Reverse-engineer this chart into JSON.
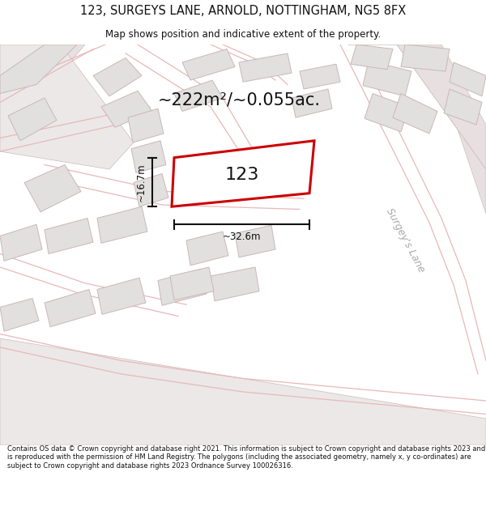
{
  "title_line1": "123, SURGEYS LANE, ARNOLD, NOTTINGHAM, NG5 8FX",
  "title_line2": "Map shows position and indicative extent of the property.",
  "area_text": "~222m²/~0.055ac.",
  "plot_number": "123",
  "dim_width": "~32.6m",
  "dim_height": "~16.7m",
  "street_label": "Surgey's Lane",
  "footer_text": "Contains OS data © Crown copyright and database right 2021. This information is subject to Crown copyright and database rights 2023 and is reproduced with the permission of HM Land Registry. The polygons (including the associated geometry, namely x, y co-ordinates) are subject to Crown copyright and database rights 2023 Ordnance Survey 100026316.",
  "map_bg": "#f7f5f5",
  "road_outline": "#e8b8b8",
  "road_fill": "#e8e0e0",
  "plot_outline_color": "#cc0000",
  "plot_fill_color": "#ffffff",
  "building_fill": "#e2dfdf",
  "building_edge": "#c8b8b8",
  "dim_line_color": "#111111",
  "text_color": "#111111",
  "street_text_color": "#aaaaaa",
  "title_fontsize": 10.5,
  "subtitle_fontsize": 8.5,
  "area_fontsize": 15,
  "plot_num_fontsize": 16,
  "dim_fontsize": 8.5,
  "street_fontsize": 9,
  "footer_fontsize": 6.0
}
